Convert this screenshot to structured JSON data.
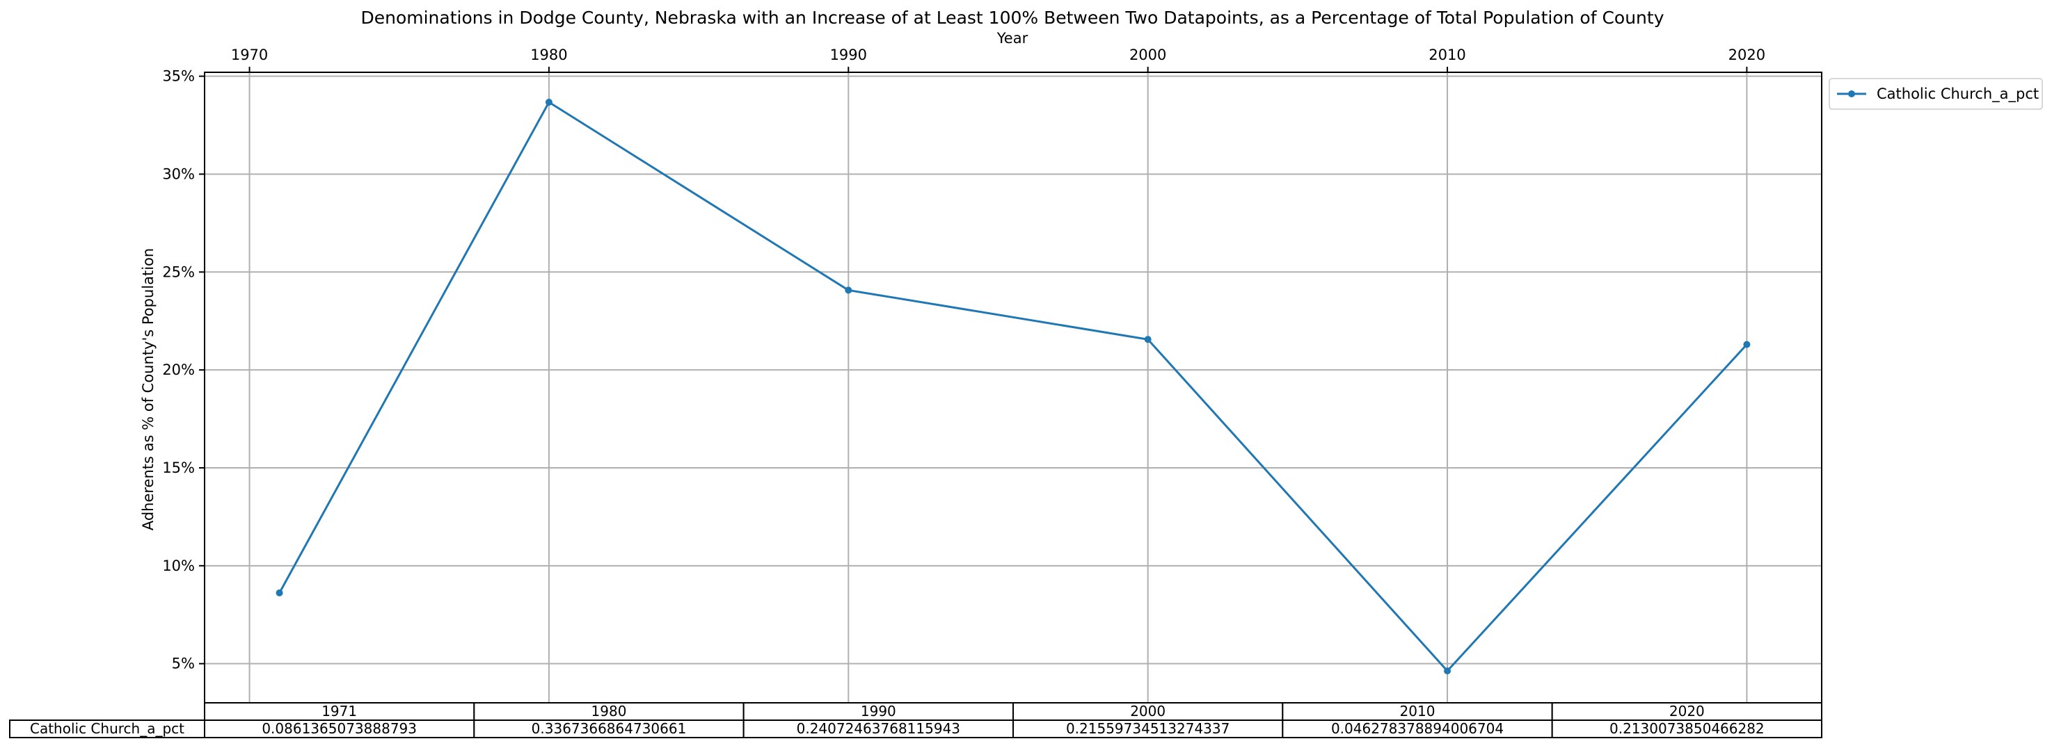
{
  "chart_data": {
    "type": "line",
    "title": "Denominations in Dodge County, Nebraska with an Increase of at Least 100% Between Two Datapoints, as a Percentage of Total Population of County",
    "xlabel": "Year",
    "ylabel": "Adherents as % of County's Population",
    "x_ticks": [
      "1970",
      "1980",
      "1990",
      "2000",
      "2010",
      "2020"
    ],
    "y_ticks": [
      "5%",
      "10%",
      "15%",
      "20%",
      "25%",
      "30%",
      "35%"
    ],
    "xlim": [
      1968.5,
      2022.5
    ],
    "ylim": [
      0.03,
      0.352
    ],
    "grid": true,
    "legend_position": "outside-top-right",
    "x": [
      1971,
      1980,
      1990,
      2000,
      2010,
      2020
    ],
    "series": [
      {
        "name": "Catholic Church_a_pct",
        "color": "#1f77b4",
        "values": [
          0.0861365073888793,
          0.3367366864730661,
          0.24072463768115943,
          0.21559734513274337,
          0.046278378894006704,
          0.2130073850466282
        ]
      }
    ],
    "table": {
      "col_labels": [
        "1971",
        "1980",
        "1990",
        "2000",
        "2010",
        "2020"
      ],
      "rows": [
        {
          "label": "Catholic Church_a_pct",
          "cells": [
            "0.0861365073888793",
            "0.3367366864730661",
            "0.24072463768115943",
            "0.21559734513274337",
            "0.046278378894006704",
            "0.2130073850466282"
          ]
        }
      ]
    }
  }
}
